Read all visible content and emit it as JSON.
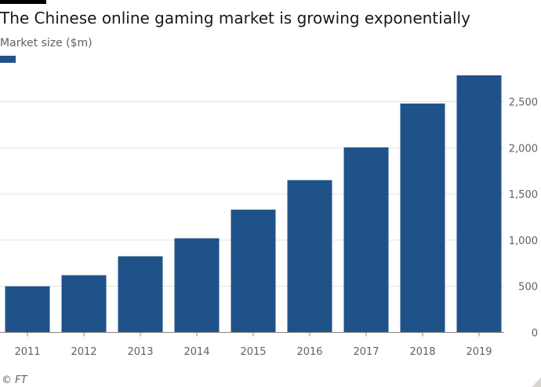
{
  "title": "The Chinese online gaming market is growing exponentially",
  "subtitle": "Market size ($m)",
  "source": "© FT",
  "colors": {
    "bar": "#1f5289",
    "grid": "#e6e1da",
    "axis": "#8a8580"
  },
  "chart_data": {
    "type": "bar",
    "title": "The Chinese online gaming market is growing exponentially",
    "ylabel": "Market size ($m)",
    "xlabel": "",
    "categories": [
      "2011",
      "2012",
      "2013",
      "2014",
      "2015",
      "2016",
      "2017",
      "2018",
      "2019"
    ],
    "values": [
      500,
      620,
      825,
      1020,
      1330,
      1650,
      2005,
      2480,
      2785
    ],
    "ylim": [
      0,
      2800
    ],
    "yticks": [
      0,
      500,
      1000,
      1500,
      2000,
      2500
    ],
    "ytick_labels": [
      "0",
      "500",
      "1,000",
      "1,500",
      "2,000",
      "2,500"
    ],
    "y_axis_side": "right",
    "grid": true,
    "legend": "top-left"
  }
}
